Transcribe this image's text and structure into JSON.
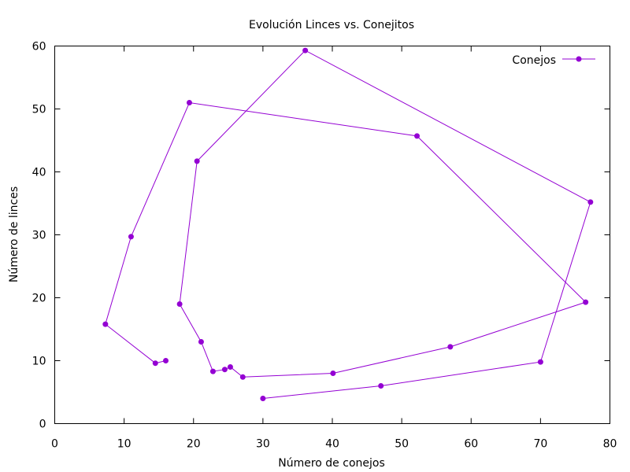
{
  "chart_data": {
    "type": "line",
    "title": "Evolución Linces vs. Conejitos",
    "xlabel": "Número de conejos",
    "ylabel": "Número de linces",
    "xlim": [
      0,
      80
    ],
    "ylim": [
      0,
      60
    ],
    "x_ticks": [
      0,
      10,
      20,
      30,
      40,
      50,
      60,
      70,
      80
    ],
    "y_ticks": [
      0,
      10,
      20,
      30,
      40,
      50,
      60
    ],
    "grid": false,
    "legend_position": "top-right",
    "series": [
      {
        "name": "Conejos",
        "color": "#9400d3",
        "marker": "circle",
        "points": [
          [
            30,
            4
          ],
          [
            47,
            6
          ],
          [
            70,
            9.8
          ],
          [
            77.2,
            35.2
          ],
          [
            36.1,
            59.3
          ],
          [
            20.5,
            41.7
          ],
          [
            18,
            19
          ],
          [
            21.1,
            13
          ],
          [
            22.8,
            8.3
          ],
          [
            24.5,
            8.6
          ],
          [
            25.3,
            9.0
          ],
          [
            27.1,
            7.4
          ],
          [
            40.1,
            8.0
          ],
          [
            57,
            12.2
          ],
          [
            76.5,
            19.3
          ],
          [
            52.2,
            45.7
          ],
          [
            19.4,
            51.0
          ],
          [
            11,
            29.7
          ],
          [
            7.3,
            15.8
          ],
          [
            14.5,
            9.6
          ],
          [
            16,
            10
          ]
        ]
      }
    ]
  }
}
